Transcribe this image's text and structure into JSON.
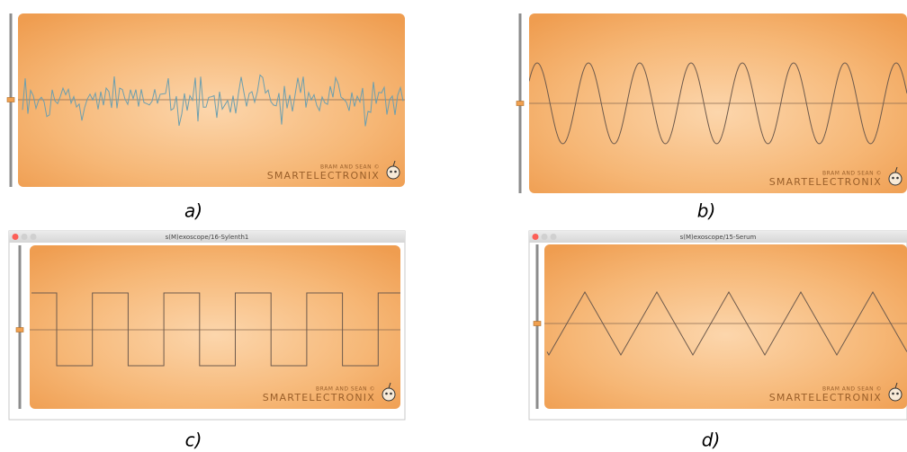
{
  "panels": [
    {
      "label": "a)",
      "logo_small": "BRAM AND SEAN ©",
      "logo_big": "SMARTELECTRONIX"
    },
    {
      "label": "b)",
      "logo_small": "BRAM AND SEAN ©",
      "logo_big": "SMARTELECTRONIX"
    },
    {
      "label": "c)",
      "window_title": "s(M)exoscope/16-Sylenth1",
      "logo_small": "BRAM AND SEAN ©",
      "logo_big": "SMARTELECTRONIX"
    },
    {
      "label": "d)",
      "window_title": "s(M)exoscope/15-Serum",
      "logo_small": "BRAM AND SEAN ©",
      "logo_big": "SMARTELECTRONIX"
    }
  ]
}
